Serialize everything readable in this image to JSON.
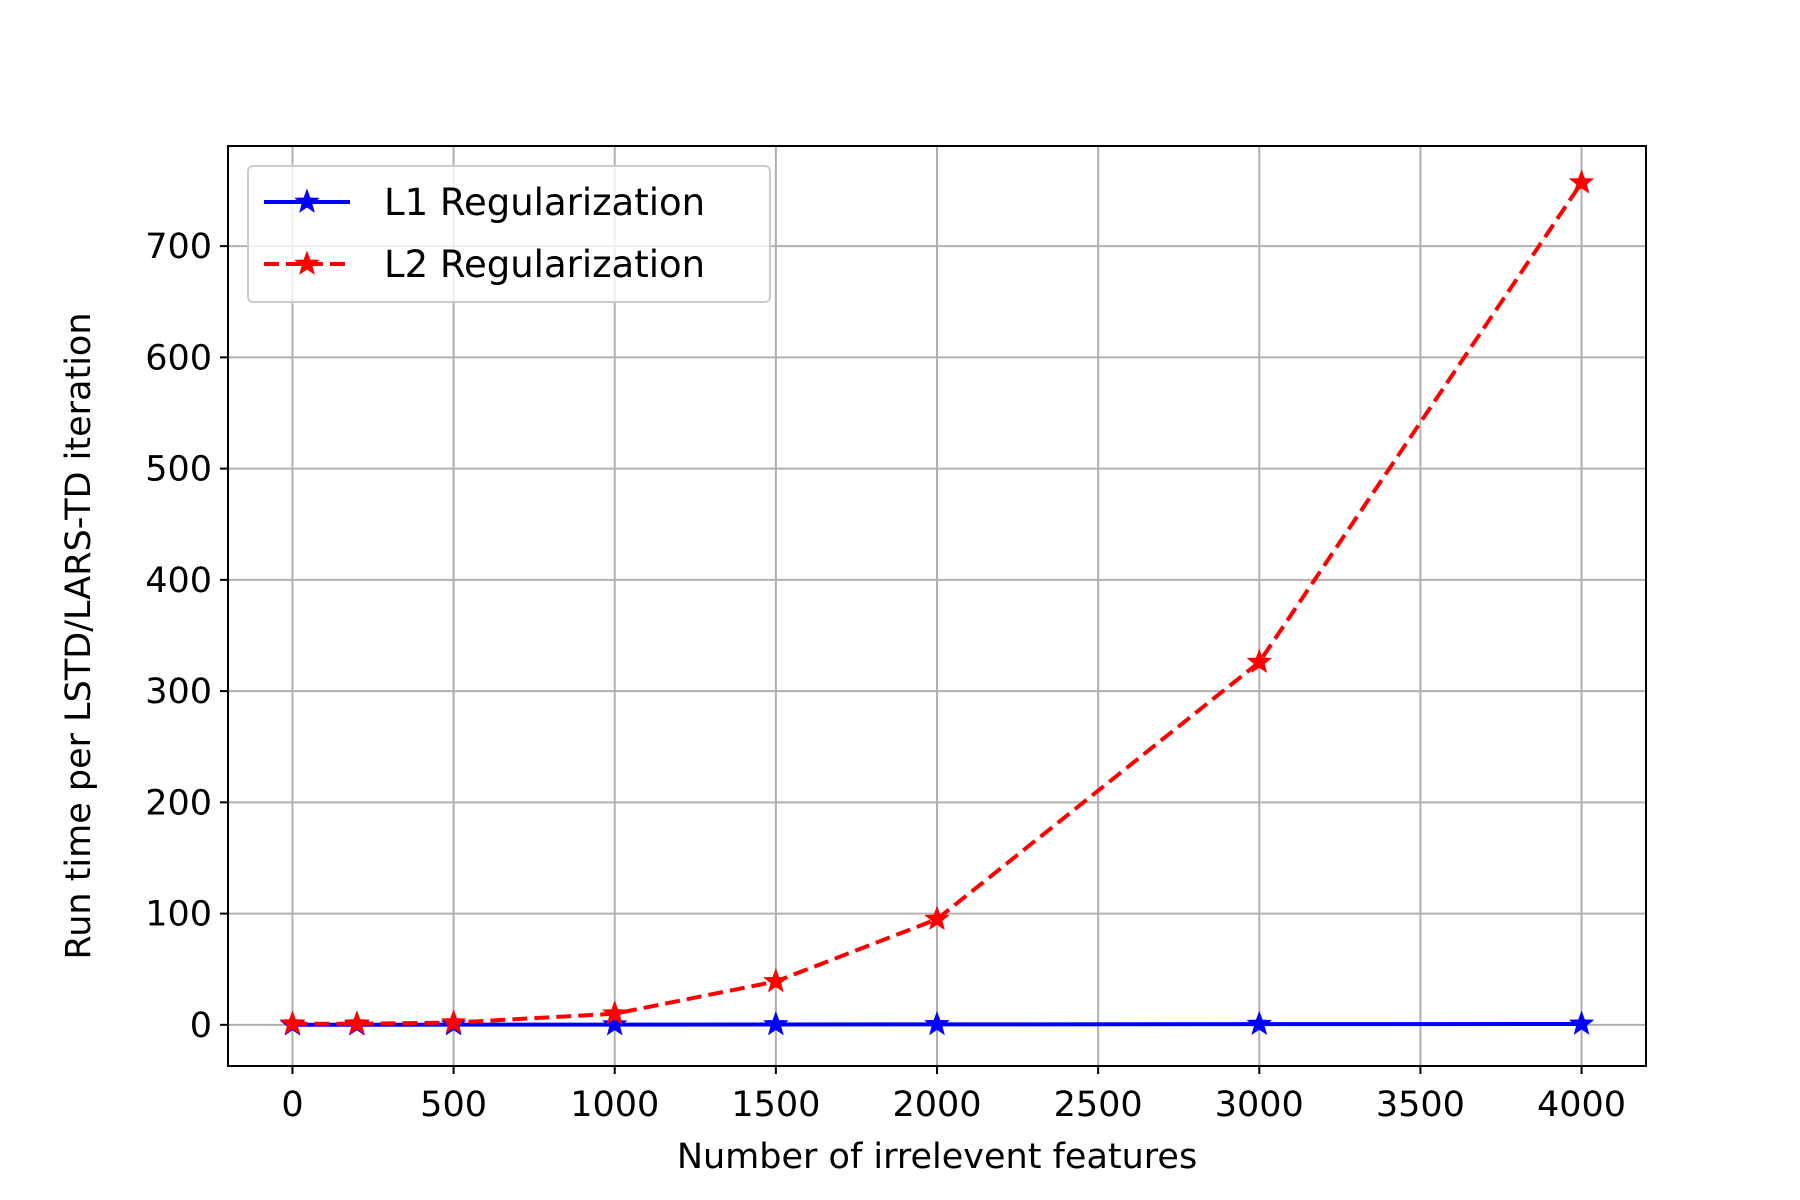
{
  "chart_data": {
    "type": "line",
    "xlabel": "Number of irrelevent features",
    "ylabel": "Run time per LSTD/LARS-TD iteration",
    "xlim": [
      -200,
      4200
    ],
    "ylim": [
      -37,
      790
    ],
    "xticks": [
      0,
      500,
      1000,
      1500,
      2000,
      2500,
      3000,
      3500,
      4000
    ],
    "yticks": [
      0,
      100,
      200,
      300,
      400,
      500,
      600,
      700
    ],
    "grid": true,
    "legend_position": "upper-left",
    "series": [
      {
        "name": "L1 Regularization",
        "color": "#0000ff",
        "linestyle": "solid",
        "marker": "star",
        "x": [
          0,
          200,
          500,
          1000,
          1500,
          2000,
          3000,
          4000
        ],
        "y": [
          0.1,
          0.1,
          0.2,
          0.2,
          0.3,
          0.4,
          0.6,
          0.8
        ]
      },
      {
        "name": "L2 Regularization",
        "color": "#ff0000",
        "linestyle": "dashed",
        "marker": "star",
        "x": [
          0,
          200,
          500,
          1000,
          1500,
          2000,
          3000,
          4000
        ],
        "y": [
          1,
          1,
          2,
          10,
          39,
          95,
          326,
          757
        ]
      }
    ]
  }
}
